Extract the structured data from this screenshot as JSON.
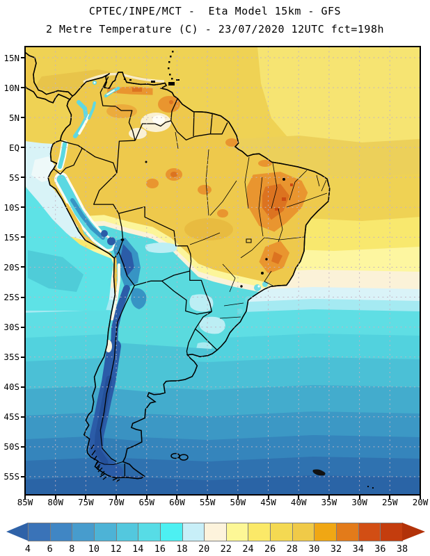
{
  "header": {
    "line1": "CPTEC/INPE/MCT -  Eta Model 15km - GFS",
    "line2": "2 Metre Temperature (C) - 23/07/2020 12UTC fct=198h"
  },
  "axes": {
    "lat_labels": [
      "15N",
      "10N",
      "5N",
      "EQ",
      "5S",
      "10S",
      "15S",
      "20S",
      "25S",
      "30S",
      "35S",
      "40S",
      "45S",
      "50S",
      "55S"
    ],
    "lon_labels": [
      "85W",
      "80W",
      "75W",
      "70W",
      "65W",
      "60W",
      "55W",
      "50W",
      "45W",
      "40W",
      "35W",
      "30W",
      "25W",
      "20W"
    ]
  },
  "colorbar": {
    "tick_labels": [
      "4",
      "6",
      "8",
      "10",
      "12",
      "14",
      "16",
      "18",
      "20",
      "22",
      "24",
      "26",
      "28",
      "30",
      "32",
      "34",
      "36",
      "38"
    ],
    "segment_colors": [
      "#3a73b8",
      "#4086c4",
      "#479ccd",
      "#4db3d6",
      "#53c8de",
      "#57dce6",
      "#4df0f2",
      "#c8eff8",
      "#fdf3dc",
      "#fdf796",
      "#fbe968",
      "#f4d952",
      "#f0ca48",
      "#f0a714",
      "#e37b1a",
      "#d24e14",
      "#c43d0e"
    ],
    "left_arrow_color": "#2f62a8",
    "right_arrow_color": "#b23209",
    "units": "C"
  },
  "chart_data": {
    "type": "heatmap",
    "title": "CPTEC/INPE/MCT -  Eta Model 15km - GFS",
    "subtitle": "2 Metre Temperature (C) - 23/07/2020 12UTC fct=198h",
    "x_tick_labels": [
      "85W",
      "80W",
      "75W",
      "70W",
      "65W",
      "60W",
      "55W",
      "50W",
      "45W",
      "40W",
      "35W",
      "30W",
      "25W",
      "20W"
    ],
    "y_tick_labels": [
      "15N",
      "10N",
      "5N",
      "EQ",
      "5S",
      "10S",
      "15S",
      "20S",
      "25S",
      "30S",
      "35S",
      "40S",
      "45S",
      "50S",
      "55S"
    ],
    "colorbar_ticks": [
      4,
      6,
      8,
      10,
      12,
      14,
      16,
      18,
      20,
      22,
      24,
      26,
      28,
      30,
      32,
      34,
      36,
      38
    ],
    "colorbar_colors": [
      "#3a73b8",
      "#4086c4",
      "#479ccd",
      "#4db3d6",
      "#53c8de",
      "#57dce6",
      "#4df0f2",
      "#c8eff8",
      "#fdf3dc",
      "#fdf796",
      "#fbe968",
      "#f4d952",
      "#f0ca48",
      "#f0a714",
      "#e37b1a",
      "#d24e14",
      "#c43d0e"
    ],
    "units": "C",
    "grid": "dashed 5-degree graticule",
    "legend_position": "bottom"
  }
}
